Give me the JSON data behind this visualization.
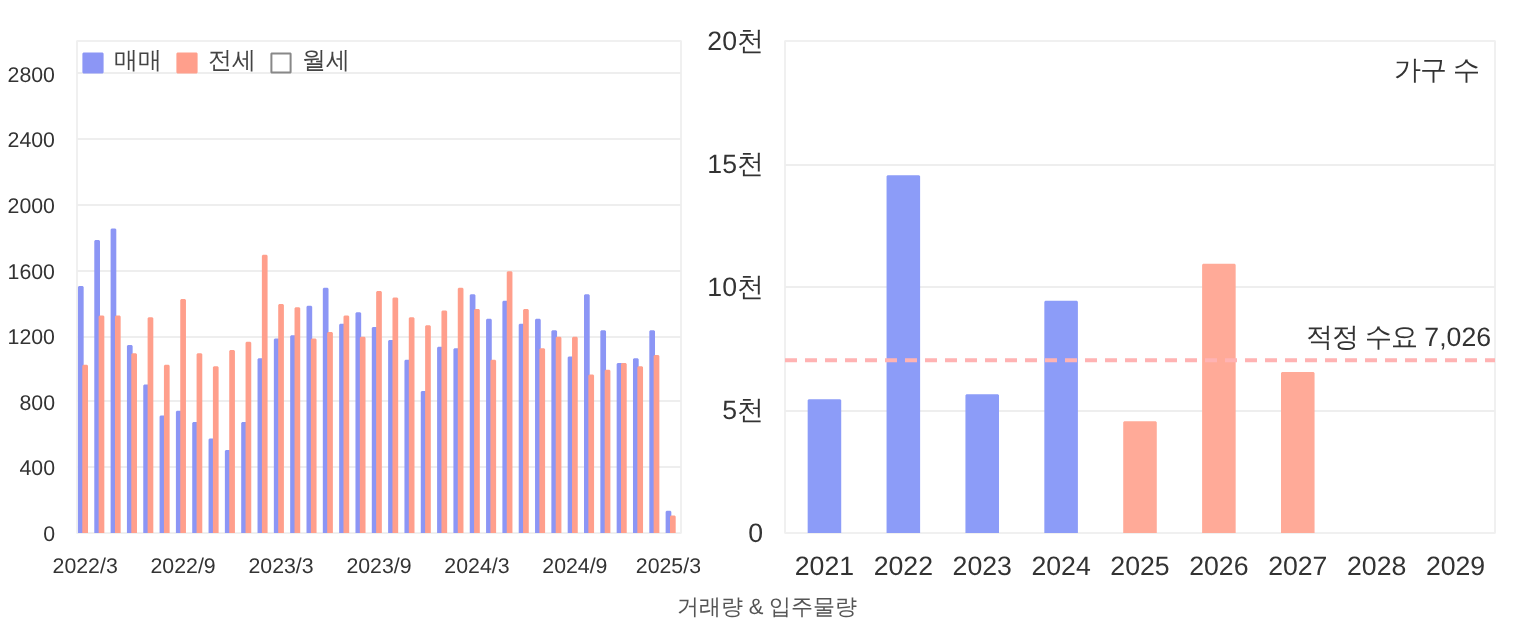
{
  "chart_data": [
    {
      "type": "bar",
      "categories": [
        "2022/3",
        null,
        null,
        null,
        null,
        null,
        "2022/9",
        null,
        null,
        null,
        null,
        null,
        "2023/3",
        null,
        null,
        null,
        null,
        null,
        "2023/9",
        null,
        null,
        null,
        null,
        null,
        "2024/3",
        null,
        null,
        null,
        null,
        null,
        "2024/9",
        null,
        null,
        null,
        null,
        null,
        "2025/3"
      ],
      "series": [
        {
          "name": "매매",
          "color": "#8c96f5",
          "values": [
            1500,
            1780,
            1850,
            1140,
            900,
            710,
            740,
            670,
            570,
            500,
            670,
            1060,
            1180,
            1200,
            1380,
            1490,
            1270,
            1340,
            1250,
            1170,
            1050,
            860,
            1130,
            1120,
            1450,
            1300,
            1410,
            1270,
            1300,
            1230,
            1070,
            1450,
            1230,
            1030,
            1060,
            1230,
            130
          ]
        },
        {
          "name": "전세",
          "color": "#ff9f8c",
          "values": [
            1020,
            1320,
            1320,
            1090,
            1310,
            1020,
            1420,
            1090,
            1010,
            1110,
            1160,
            1690,
            1390,
            1370,
            1180,
            1220,
            1320,
            1190,
            1470,
            1430,
            1310,
            1260,
            1350,
            1490,
            1360,
            1050,
            1590,
            1360,
            1120,
            1190,
            1190,
            960,
            990,
            1030,
            1010,
            1080,
            100
          ]
        },
        {
          "name": "월세",
          "color": "#ffffff",
          "values": [
            null,
            null,
            null,
            null,
            null,
            null,
            null,
            null,
            null,
            null,
            null,
            null,
            null,
            null,
            null,
            null,
            null,
            null,
            null,
            null,
            null,
            null,
            null,
            null,
            null,
            null,
            null,
            null,
            null,
            null,
            null,
            null,
            null,
            null,
            null,
            null,
            null
          ]
        }
      ],
      "ylim": [
        0,
        3000
      ],
      "yticks": [
        0,
        400,
        800,
        1200,
        1600,
        2000,
        2400,
        2800
      ],
      "grid": "y",
      "legend": "top left",
      "annotations": [
        "거래량 & 입주물량"
      ]
    },
    {
      "type": "bar",
      "categories": [
        "2021",
        "2022",
        "2023",
        "2024",
        "2025",
        "2026",
        "2027",
        "2028",
        "2029"
      ],
      "values": [
        5.4,
        14.5,
        5.6,
        9.4,
        4.5,
        10.9,
        6.5,
        null,
        null
      ],
      "colors": [
        "#8c9cf8",
        "#8c9cf8",
        "#8c9cf8",
        "#8c9cf8",
        "#ffaa98",
        "#ffaa98",
        "#ffaa98",
        "#ffaa98",
        "#ffaa98"
      ],
      "ylim": [
        0,
        20
      ],
      "yticks": [
        0,
        {
          "value": 5,
          "label": "5천"
        },
        {
          "value": 10,
          "label": "10천"
        },
        {
          "value": 15,
          "label": "15천"
        },
        {
          "value": 20,
          "label": "20천"
        }
      ],
      "grid": "y",
      "ref_lines": [
        {
          "axis": "y",
          "value": 7.026,
          "label": "적정 수요 7,026",
          "color": "#ffb3b3",
          "line_style": "dashed"
        }
      ],
      "annotations": [
        "가구 수"
      ]
    }
  ]
}
